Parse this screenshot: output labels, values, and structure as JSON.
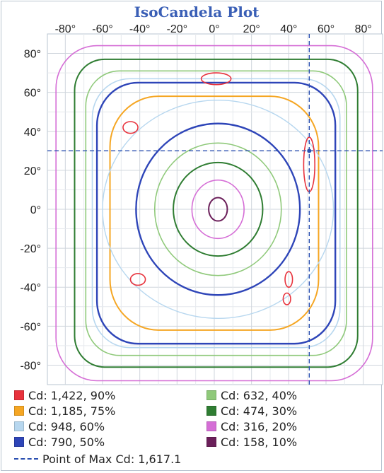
{
  "chart_data": {
    "type": "contour",
    "title": "IsoCandela Plot",
    "x_ticks": [
      "-80°",
      "-60°",
      "-40°",
      "-20°",
      "0°",
      "20°",
      "40°",
      "60°",
      "80°"
    ],
    "y_ticks": [
      "80°",
      "60°",
      "40°",
      "20°",
      "0°",
      "-20°",
      "-40°",
      "-60°",
      "-80°"
    ],
    "xlim": [
      -90,
      90
    ],
    "ylim": [
      -90,
      90
    ],
    "grid": true,
    "legend_position": "bottom",
    "contours": [
      {
        "label": "Cd: 1,422, 90%",
        "candela": 1422,
        "percent": 90,
        "color": "#e8323c"
      },
      {
        "label": "Cd: 1,185, 75%",
        "candela": 1185,
        "percent": 75,
        "color": "#f5a623"
      },
      {
        "label": "Cd: 948, 60%",
        "candela": 948,
        "percent": 60,
        "color": "#b7d7ef"
      },
      {
        "label": "Cd: 790, 50%",
        "candela": 790,
        "percent": 50,
        "color": "#2e45b8"
      },
      {
        "label": "Cd: 632, 40%",
        "candela": 632,
        "percent": 40,
        "color": "#8fc97a"
      },
      {
        "label": "Cd: 474, 30%",
        "candela": 474,
        "percent": 30,
        "color": "#2f7d32"
      },
      {
        "label": "Cd: 316, 20%",
        "candela": 316,
        "percent": 20,
        "color": "#d56ed6"
      },
      {
        "label": "Cd: 158, 10%",
        "candela": 158,
        "percent": 10,
        "color": "#6b1f5a"
      }
    ],
    "max_point": {
      "label": "Point of Max Cd: 1,617.1",
      "candela": 1617.1,
      "x": 51,
      "y": 30
    }
  }
}
